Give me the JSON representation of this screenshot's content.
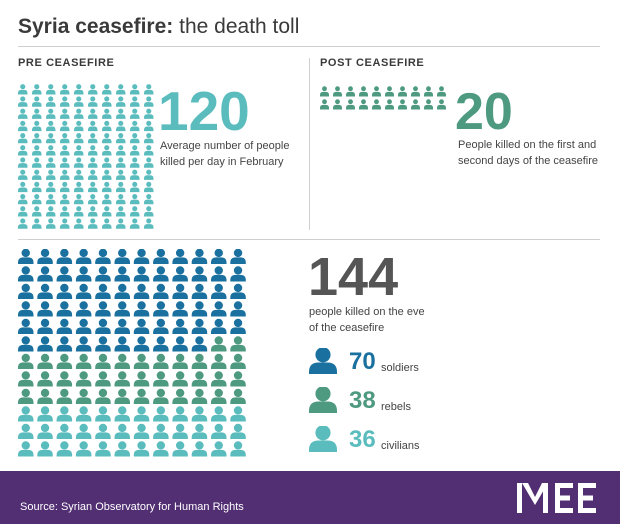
{
  "title_bold": "Syria ceasefire:",
  "title_rest": "the death toll",
  "pre": {
    "label": "PRE CEASEFIRE",
    "number": "120",
    "caption_lines": [
      "Average number of people",
      "killed per day in February"
    ]
  },
  "post": {
    "label": "POST CEASEFIRE",
    "number": "20",
    "caption_lines": [
      "People killed on the first and",
      "second days of the ceasefire"
    ]
  },
  "eve": {
    "number": "144",
    "caption_lines": [
      "people killed on the eve",
      "of the ceasefire"
    ]
  },
  "colors": {
    "pre": "#5bbcbe",
    "post": "#4e9a80",
    "soldiers": "#1a709e",
    "rebels": "#4e9a80",
    "civilians": "#5bbcbe",
    "eve_number": "#555555",
    "footer": "#522e73"
  },
  "chart_data": {
    "type": "pictogram",
    "items": [
      {
        "label": "PRE CEASEFIRE",
        "value": 120,
        "icon": "person-icon"
      },
      {
        "label": "POST CEASEFIRE",
        "value": 20,
        "icon": "person-icon"
      },
      {
        "label": "",
        "value": 144,
        "icon": "person-icon",
        "breakdown": [
          {
            "name": "soldiers",
            "value": 70
          },
          {
            "name": "rebels",
            "value": 38
          },
          {
            "name": "civilians",
            "value": 36
          }
        ]
      }
    ]
  },
  "footer": {
    "source": "Source: Syrian Observatory for Human Rights",
    "logo_text": "MEE"
  }
}
